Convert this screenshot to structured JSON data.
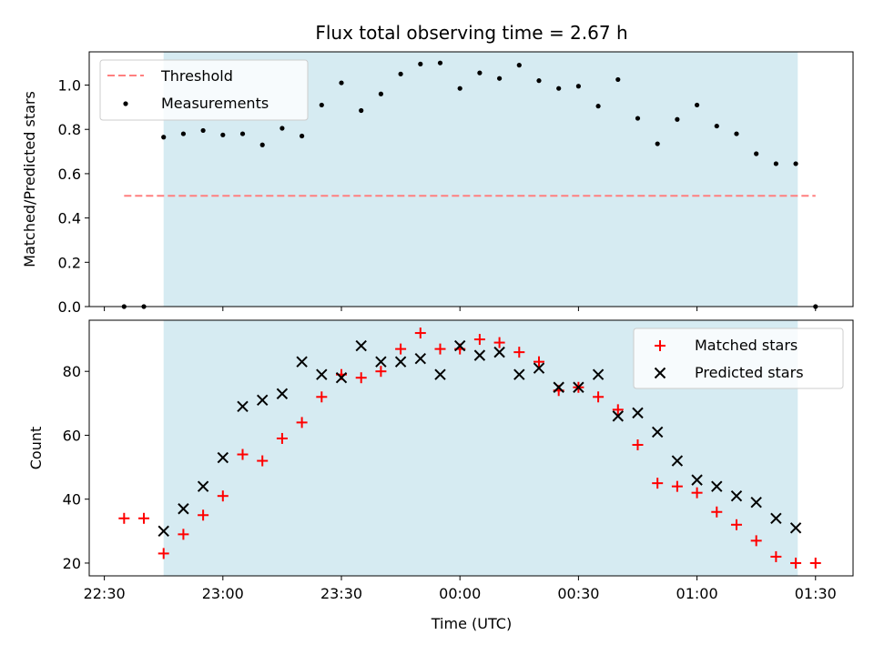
{
  "chart_data": {
    "type": "scatter",
    "title": "Flux total observing time = 2.67 h",
    "xlabel": "Time (UTC)",
    "x_axis": {
      "unit": "minutes after 22:30",
      "ticks": [
        0,
        30,
        60,
        90,
        120,
        150,
        180
      ],
      "tick_labels": [
        "22:30",
        "23:00",
        "23:30",
        "00:00",
        "00:30",
        "01:00",
        "01:30"
      ]
    },
    "highlight_span": {
      "start": 15,
      "end": 175.5,
      "color": "#add8e6"
    },
    "top_panel": {
      "ylabel": "Matched/Predicted stars",
      "ylim": [
        0,
        1.15
      ],
      "y_ticks": [
        0,
        0.2,
        0.4,
        0.6,
        0.8,
        1.0
      ],
      "y_tick_labels": [
        "0.0",
        "0.2",
        "0.4",
        "0.6",
        "0.8",
        "1.0"
      ],
      "threshold": {
        "name": "Threshold",
        "value": 0.5,
        "x_start": 5,
        "x_end": 180,
        "color": "#ff7f7f"
      },
      "measurements": {
        "name": "Measurements",
        "color": "#000000",
        "points": [
          [
            5,
            0.0
          ],
          [
            10,
            0.0
          ],
          [
            15,
            0.765
          ],
          [
            20,
            0.78
          ],
          [
            25,
            0.795
          ],
          [
            30,
            0.775
          ],
          [
            35,
            0.78
          ],
          [
            40,
            0.73
          ],
          [
            45,
            0.805
          ],
          [
            50,
            0.77
          ],
          [
            55,
            0.91
          ],
          [
            60,
            1.01
          ],
          [
            65,
            0.885
          ],
          [
            70,
            0.96
          ],
          [
            75,
            1.05
          ],
          [
            80,
            1.095
          ],
          [
            85,
            1.1
          ],
          [
            90,
            0.985
          ],
          [
            95,
            1.055
          ],
          [
            100,
            1.03
          ],
          [
            105,
            1.09
          ],
          [
            110,
            1.02
          ],
          [
            115,
            0.985
          ],
          [
            120,
            0.995
          ],
          [
            125,
            0.905
          ],
          [
            130,
            1.025
          ],
          [
            135,
            0.85
          ],
          [
            140,
            0.735
          ],
          [
            145,
            0.845
          ],
          [
            150,
            0.91
          ],
          [
            155,
            0.815
          ],
          [
            160,
            0.78
          ],
          [
            165,
            0.69
          ],
          [
            170,
            0.645
          ],
          [
            175,
            0.645
          ],
          [
            180,
            0.0
          ]
        ]
      },
      "legend": {
        "placement": "top-left"
      }
    },
    "bottom_panel": {
      "ylabel": "Count",
      "ylim": [
        16,
        96
      ],
      "y_ticks": [
        20,
        40,
        60,
        80
      ],
      "y_tick_labels": [
        "20",
        "40",
        "60",
        "80"
      ],
      "series": [
        {
          "name": "Matched stars",
          "marker": "plus",
          "color": "#ff0000",
          "points": [
            [
              5,
              34
            ],
            [
              10,
              34
            ],
            [
              15,
              23
            ],
            [
              20,
              29
            ],
            [
              25,
              35
            ],
            [
              30,
              41
            ],
            [
              35,
              54
            ],
            [
              40,
              52
            ],
            [
              45,
              59
            ],
            [
              50,
              64
            ],
            [
              55,
              72
            ],
            [
              60,
              79
            ],
            [
              65,
              78
            ],
            [
              70,
              80
            ],
            [
              75,
              87
            ],
            [
              80,
              92
            ],
            [
              85,
              87
            ],
            [
              90,
              87
            ],
            [
              95,
              90
            ],
            [
              100,
              89
            ],
            [
              105,
              86
            ],
            [
              110,
              83
            ],
            [
              115,
              74
            ],
            [
              120,
              75
            ],
            [
              125,
              72
            ],
            [
              130,
              68
            ],
            [
              135,
              57
            ],
            [
              140,
              45
            ],
            [
              145,
              44
            ],
            [
              150,
              42
            ],
            [
              155,
              36
            ],
            [
              160,
              32
            ],
            [
              165,
              27
            ],
            [
              170,
              22
            ],
            [
              175,
              20
            ],
            [
              180,
              20
            ]
          ]
        },
        {
          "name": "Predicted stars",
          "marker": "x",
          "color": "#000000",
          "points": [
            [
              15,
              30
            ],
            [
              20,
              37
            ],
            [
              25,
              44
            ],
            [
              30,
              53
            ],
            [
              35,
              69
            ],
            [
              40,
              71
            ],
            [
              45,
              73
            ],
            [
              50,
              83
            ],
            [
              55,
              79
            ],
            [
              60,
              78
            ],
            [
              65,
              88
            ],
            [
              70,
              83
            ],
            [
              75,
              83
            ],
            [
              80,
              84
            ],
            [
              85,
              79
            ],
            [
              90,
              88
            ],
            [
              95,
              85
            ],
            [
              100,
              86
            ],
            [
              105,
              79
            ],
            [
              110,
              81
            ],
            [
              115,
              75
            ],
            [
              120,
              75
            ],
            [
              125,
              79
            ],
            [
              130,
              66
            ],
            [
              135,
              67
            ],
            [
              140,
              61
            ],
            [
              145,
              52
            ],
            [
              150,
              46
            ],
            [
              155,
              44
            ],
            [
              160,
              41
            ],
            [
              165,
              39
            ],
            [
              170,
              34
            ],
            [
              175,
              31
            ]
          ]
        }
      ],
      "legend": {
        "placement": "top-right"
      }
    }
  }
}
